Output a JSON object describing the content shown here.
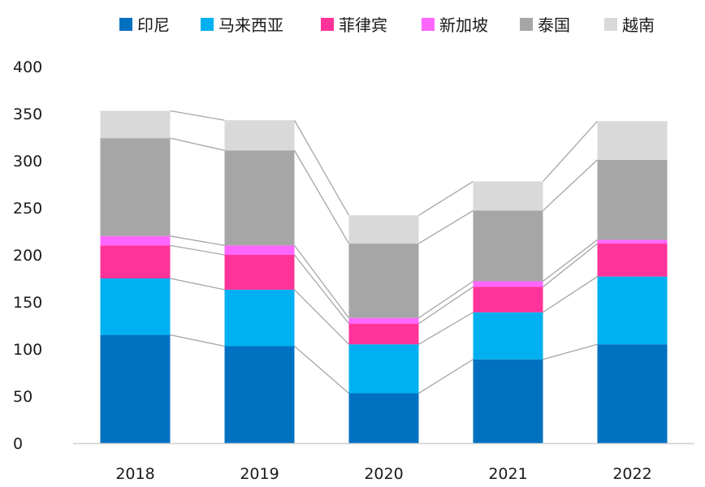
{
  "chart_data": {
    "type": "bar",
    "stacked": true,
    "categories": [
      "2018",
      "2019",
      "2020",
      "2021",
      "2022"
    ],
    "ylim": [
      0,
      400
    ],
    "yticks": [
      0,
      50,
      100,
      150,
      200,
      250,
      300,
      350,
      400
    ],
    "legend_position": "top",
    "series_lines": true,
    "series": [
      {
        "name": "印尼",
        "color": "#0070C0",
        "values": [
          115,
          103,
          53,
          89,
          105
        ]
      },
      {
        "name": "马来西亚",
        "color": "#00B0F0",
        "values": [
          60,
          60,
          52,
          50,
          72
        ]
      },
      {
        "name": "菲律宾",
        "color": "#FF3399",
        "values": [
          35,
          37,
          22,
          27,
          35
        ]
      },
      {
        "name": "新加坡",
        "color": "#FF66FF",
        "values": [
          10,
          10,
          6,
          6,
          4
        ]
      },
      {
        "name": "泰国",
        "color": "#A6A6A6",
        "values": [
          104,
          101,
          79,
          75,
          85
        ]
      },
      {
        "name": "越南",
        "color": "#D9D9D9",
        "values": [
          29,
          32,
          30,
          31,
          41
        ]
      }
    ]
  }
}
